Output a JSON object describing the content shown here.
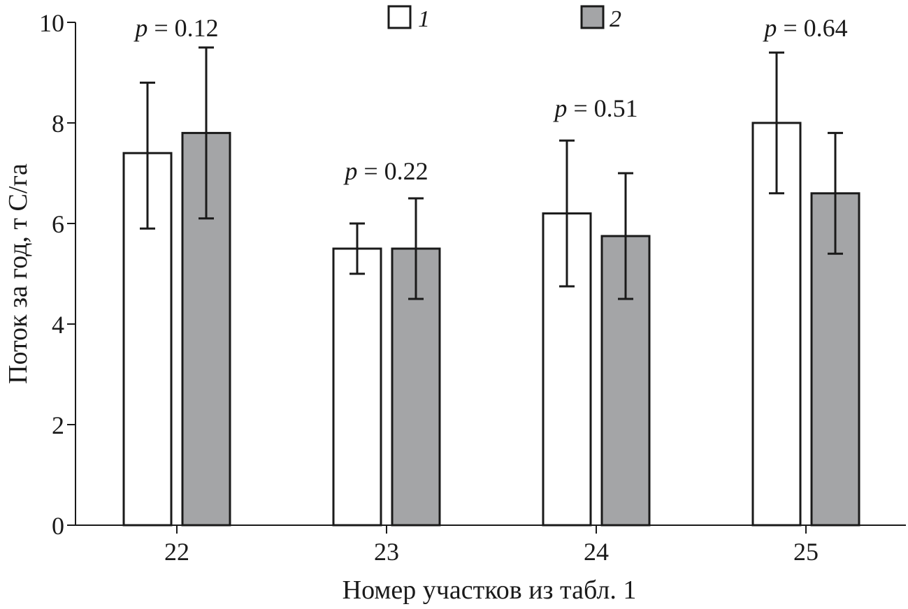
{
  "chart_data": {
    "type": "bar",
    "title": "",
    "xlabel": "Номер участков из табл. 1",
    "ylabel": "Поток за год, т С/га",
    "ylim": [
      0,
      10
    ],
    "yticks": [
      0,
      2,
      4,
      6,
      8,
      10
    ],
    "grid": false,
    "legend_position": "top-center",
    "categories": [
      "22",
      "23",
      "24",
      "25"
    ],
    "series": [
      {
        "name": "1",
        "color": "#ffffff",
        "values": [
          7.4,
          5.5,
          6.2,
          8.0
        ],
        "err_low": [
          5.9,
          5.0,
          4.75,
          6.6
        ],
        "err_high": [
          8.8,
          6.0,
          7.65,
          9.4
        ]
      },
      {
        "name": "2",
        "color": "#a4a5a7",
        "values": [
          7.8,
          5.5,
          5.75,
          6.6
        ],
        "err_low": [
          6.1,
          4.5,
          4.5,
          5.4
        ],
        "err_high": [
          9.5,
          6.5,
          7.0,
          7.8
        ]
      }
    ],
    "annotations": [
      {
        "category": "22",
        "label": "p",
        "text": "= 0.12",
        "y": 10.0
      },
      {
        "category": "23",
        "label": "p",
        "text": "= 0.22",
        "y": 7.15
      },
      {
        "category": "24",
        "label": "p",
        "text": "= 0.51",
        "y": 8.4
      },
      {
        "category": "25",
        "label": "p",
        "text": "= 0.64",
        "y": 10.0
      }
    ]
  }
}
